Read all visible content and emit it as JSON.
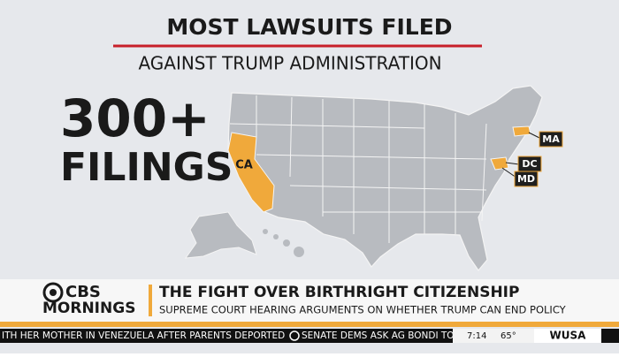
{
  "header": {
    "title": "MOST LAWSUITS FILED",
    "subtitle": "AGAINST TRUMP ADMINISTRATION"
  },
  "stat": {
    "value": "300+",
    "label": "FILINGS"
  },
  "map": {
    "labels": [
      "CA",
      "MA",
      "DC",
      "MD"
    ]
  },
  "lower_third": {
    "logo_top": "CBS",
    "logo_bottom": "MORNINGS",
    "headline": "THE FIGHT OVER BIRTHRIGHT CITIZENSHIP",
    "subhead": "SUPREME COURT HEARING ARGUMENTS ON WHETHER TRUMP CAN END POLICY"
  },
  "ticker": {
    "items": [
      "ITH HER MOTHER IN VENEZUELA AFTER PARENTS DEPORTED",
      "SENATE DEMS ASK AG BONDI TO"
    ],
    "time": "7:14",
    "temperature": "65°",
    "station": "WUSA"
  }
}
